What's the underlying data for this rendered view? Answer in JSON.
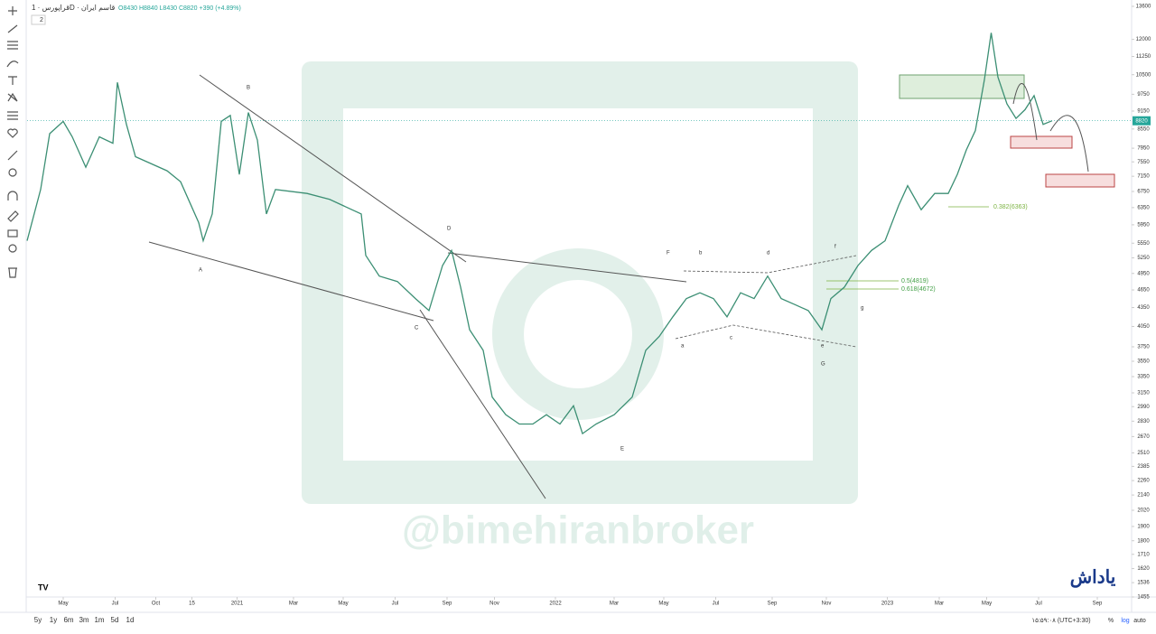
{
  "header": {
    "symbol": "قراپورس · 1D · قاسم ایران",
    "ohlc": "O8430 H8840 L8430 C8820 +390 (+4.89%)",
    "count": "2"
  },
  "watermark": "@bimehiranbroker",
  "logo": "یاداش",
  "footer": {
    "ranges": [
      "5y",
      "1y",
      "6m",
      "3m",
      "1m",
      "5d",
      "1d"
    ],
    "clock": "۱۵:۵۹:۰۸ (UTC+3:30)",
    "options": [
      "%",
      "log",
      "auto"
    ]
  },
  "annotations": {
    "waves": [
      "A",
      "B",
      "C",
      "D",
      "E",
      "F",
      "G",
      "a",
      "b",
      "c",
      "d",
      "e",
      "f",
      "g"
    ],
    "fib": [
      "0.382(6363)",
      "0.5(4819)",
      "0.618(4672)"
    ]
  },
  "chart_data": {
    "type": "line",
    "log_scale": true,
    "grid": false,
    "last_price": 8820,
    "x": [
      0,
      6,
      10,
      16,
      20,
      26,
      32,
      38,
      40,
      44,
      48,
      62,
      68,
      76,
      78,
      82,
      86,
      90,
      94,
      98,
      102,
      106,
      110,
      124,
      134,
      148,
      150,
      156,
      164,
      172,
      178,
      184,
      188,
      192,
      196,
      202,
      206,
      212,
      218,
      224,
      230,
      236,
      242,
      246,
      252,
      260,
      268,
      274,
      280,
      286,
      292,
      298,
      304,
      310,
      316,
      322,
      328,
      334,
      340,
      346,
      352,
      356,
      362,
      368,
      374,
      380,
      386,
      390,
      396,
      402,
      408,
      412,
      416,
      420,
      424,
      427,
      430,
      434,
      438,
      442,
      446,
      450,
      454
    ],
    "series": [
      {
        "name": "قراپورس",
        "color": "#3c8f74",
        "values": [
          5600,
          6800,
          8400,
          8800,
          8300,
          7400,
          8300,
          8100,
          10200,
          8700,
          7700,
          7300,
          7000,
          6000,
          5600,
          6200,
          8800,
          9000,
          7200,
          9100,
          8200,
          6200,
          6800,
          6700,
          6550,
          6200,
          5300,
          4900,
          4800,
          4500,
          4300,
          5100,
          5400,
          4700,
          4000,
          3700,
          3100,
          2900,
          2800,
          2800,
          2900,
          2800,
          3000,
          2700,
          2800,
          2900,
          3100,
          3700,
          3900,
          4200,
          4500,
          4600,
          4500,
          4200,
          4600,
          4500,
          4900,
          4500,
          4400,
          4300,
          4000,
          4500,
          4700,
          5100,
          5400,
          5600,
          6400,
          6900,
          6300,
          6700,
          6700,
          7200,
          7900,
          8500,
          10300,
          12300,
          10400,
          9400,
          8900,
          9200,
          9700,
          8700,
          8820
        ]
      }
    ],
    "xlim": [
      0,
      490
    ],
    "xticks": [
      {
        "value": 16,
        "label": "May"
      },
      {
        "value": 39,
        "label": "Jul"
      },
      {
        "value": 57,
        "label": "Oct"
      },
      {
        "value": 73,
        "label": "15"
      },
      {
        "value": 93,
        "label": "2021"
      },
      {
        "value": 118,
        "label": "Mar"
      },
      {
        "value": 140,
        "label": "May"
      },
      {
        "value": 163,
        "label": "Jul"
      },
      {
        "value": 186,
        "label": "Sep"
      },
      {
        "value": 207,
        "label": "Nov"
      },
      {
        "value": 234,
        "label": "2022"
      },
      {
        "value": 260,
        "label": "Mar"
      },
      {
        "value": 282,
        "label": "May"
      },
      {
        "value": 305,
        "label": "Jul"
      },
      {
        "value": 330,
        "label": "Sep"
      },
      {
        "value": 354,
        "label": "Nov"
      },
      {
        "value": 381,
        "label": "2023"
      },
      {
        "value": 404,
        "label": "Mar"
      },
      {
        "value": 425,
        "label": "May"
      },
      {
        "value": 448,
        "label": "Jul"
      },
      {
        "value": 474,
        "label": "Sep"
      }
    ],
    "ylim": [
      1455,
      13930
    ],
    "yticks": [
      13600,
      12000,
      11250,
      10500,
      9750,
      9150,
      8550,
      7950,
      7550,
      7150,
      6750,
      6350,
      5950,
      5550,
      5250,
      4950,
      4650,
      4350,
      4050,
      3750,
      3550,
      3350,
      3150,
      2990,
      2830,
      2670,
      2510,
      2385,
      2260,
      2140,
      2020,
      1900,
      1800,
      1710,
      1620,
      1536,
      1455
    ]
  }
}
